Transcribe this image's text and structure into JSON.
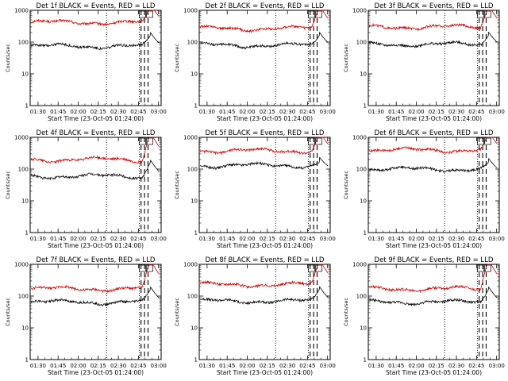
{
  "figure": {
    "colors": {
      "events": "#000000",
      "lld": "#d40000",
      "axis": "#000000"
    }
  },
  "chart_data": [
    {
      "type": "line",
      "title": "Det 1f BLACK = Events, RED = LLD",
      "xlabel": "Start Time (23-Oct-05 01:24:00)",
      "ylabel": "Counts/sec",
      "y_scale": "log",
      "ylim": [
        1,
        1000
      ],
      "x_ticks": [
        "01:30",
        "01:45",
        "02:00",
        "02:15",
        "02:30",
        "02:45",
        "03:00"
      ],
      "y_ticks": [
        "1",
        "10",
        "100",
        "1000"
      ],
      "series": [
        {
          "key": "lld",
          "base": 420,
          "rise": 1300,
          "color": "#d40000"
        },
        {
          "key": "events",
          "base": 75,
          "rise": 160,
          "color": "#000000"
        }
      ],
      "dashed_x": [
        2.54,
        2.62,
        2.7
      ],
      "dotted_x": [
        1.75,
        2.5
      ]
    },
    {
      "type": "line",
      "title": "Det 2f BLACK = Events, RED = LLD",
      "xlabel": "Start Time (23-Oct-05 01:24:00)",
      "ylabel": "Counts/sec",
      "y_scale": "log",
      "ylim": [
        1,
        1000
      ],
      "x_ticks": [
        "01:30",
        "01:45",
        "02:00",
        "02:15",
        "02:30",
        "02:45",
        "03:00"
      ],
      "y_ticks": [
        "1",
        "10",
        "100",
        "1000"
      ],
      "series": [
        {
          "key": "lld",
          "base": 270,
          "rise": 1300,
          "color": "#d40000"
        },
        {
          "key": "events",
          "base": 80,
          "rise": 160,
          "color": "#000000"
        }
      ],
      "dashed_x": [
        2.54,
        2.62,
        2.7
      ],
      "dotted_x": [
        1.75,
        2.5
      ]
    },
    {
      "type": "line",
      "title": "Det 3f BLACK = Events, RED = LLD",
      "xlabel": "Start Time (23-Oct-05 01:24:00)",
      "ylabel": "Counts/sec",
      "y_scale": "log",
      "ylim": [
        1,
        1000
      ],
      "x_ticks": [
        "01:30",
        "01:45",
        "02:00",
        "02:15",
        "02:30",
        "02:45",
        "03:00"
      ],
      "y_ticks": [
        "1",
        "10",
        "100",
        "1000"
      ],
      "series": [
        {
          "key": "lld",
          "base": 300,
          "rise": 1300,
          "color": "#d40000"
        },
        {
          "key": "events",
          "base": 85,
          "rise": 160,
          "color": "#000000"
        }
      ],
      "dashed_x": [
        2.54,
        2.62,
        2.7
      ],
      "dotted_x": [
        1.75,
        2.5
      ]
    },
    {
      "type": "line",
      "title": "Det 4f BLACK = Events, RED = LLD",
      "xlabel": "Start Time (23-Oct-05 01:24:00)",
      "ylabel": "Counts/sec",
      "y_scale": "log",
      "ylim": [
        1,
        1000
      ],
      "x_ticks": [
        "01:30",
        "01:45",
        "02:00",
        "02:15",
        "02:30",
        "02:45",
        "03:00"
      ],
      "y_ticks": [
        "1",
        "10",
        "100",
        "1000"
      ],
      "series": [
        {
          "key": "lld",
          "base": 200,
          "rise": 1300,
          "color": "#d40000"
        },
        {
          "key": "events",
          "base": 60,
          "rise": 160,
          "color": "#000000"
        }
      ],
      "dashed_x": [
        2.54,
        2.62,
        2.7
      ],
      "dotted_x": [
        1.75,
        2.5
      ]
    },
    {
      "type": "line",
      "title": "Det 5f BLACK = Events, RED = LLD",
      "xlabel": "Start Time (23-Oct-05 01:24:00)",
      "ylabel": "Counts/sec",
      "y_scale": "log",
      "ylim": [
        1,
        1000
      ],
      "x_ticks": [
        "01:30",
        "01:45",
        "02:00",
        "02:15",
        "02:30",
        "02:45",
        "03:00"
      ],
      "y_ticks": [
        "1",
        "10",
        "100",
        "1000"
      ],
      "series": [
        {
          "key": "lld",
          "base": 380,
          "rise": 1300,
          "color": "#d40000"
        },
        {
          "key": "events",
          "base": 130,
          "rise": 160,
          "color": "#000000"
        }
      ],
      "dashed_x": [
        2.54,
        2.62,
        2.7
      ],
      "dotted_x": [
        1.75,
        2.5
      ]
    },
    {
      "type": "line",
      "title": "Det 6f BLACK = Events, RED = LLD",
      "xlabel": "Start Time (23-Oct-05 01:24:00)",
      "ylabel": "Counts/sec",
      "y_scale": "log",
      "ylim": [
        1,
        1000
      ],
      "x_ticks": [
        "01:30",
        "01:45",
        "02:00",
        "02:15",
        "02:30",
        "02:45",
        "03:00"
      ],
      "y_ticks": [
        "1",
        "10",
        "100",
        "1000"
      ],
      "series": [
        {
          "key": "lld",
          "base": 400,
          "rise": 1300,
          "color": "#d40000"
        },
        {
          "key": "events",
          "base": 100,
          "rise": 160,
          "color": "#000000"
        }
      ],
      "dashed_x": [
        2.54,
        2.62,
        2.7
      ],
      "dotted_x": [
        1.75,
        2.5
      ]
    },
    {
      "type": "line",
      "title": "Det 7f BLACK = Events, RED = LLD",
      "xlabel": "Start Time (23-Oct-05 01:24:00)",
      "ylabel": "Counts/sec",
      "y_scale": "log",
      "ylim": [
        1,
        1000
      ],
      "x_ticks": [
        "01:30",
        "01:45",
        "02:00",
        "02:15",
        "02:30",
        "02:45",
        "03:00"
      ],
      "y_ticks": [
        "1",
        "10",
        "100",
        "1000"
      ],
      "series": [
        {
          "key": "lld",
          "base": 170,
          "rise": 1300,
          "color": "#d40000"
        },
        {
          "key": "events",
          "base": 65,
          "rise": 160,
          "color": "#000000"
        }
      ],
      "dashed_x": [
        2.54,
        2.62,
        2.7
      ],
      "dotted_x": [
        1.75,
        2.5
      ]
    },
    {
      "type": "line",
      "title": "Det 8f BLACK = Events, RED = LLD",
      "xlabel": "Start Time (23-Oct-05 01:24:00)",
      "ylabel": "Counts/sec",
      "y_scale": "log",
      "ylim": [
        1,
        1000
      ],
      "x_ticks": [
        "01:30",
        "01:45",
        "02:00",
        "02:15",
        "02:30",
        "02:45",
        "03:00"
      ],
      "y_ticks": [
        "1",
        "10",
        "100",
        "1000"
      ],
      "series": [
        {
          "key": "lld",
          "base": 230,
          "rise": 1300,
          "color": "#d40000"
        },
        {
          "key": "events",
          "base": 70,
          "rise": 160,
          "color": "#000000"
        }
      ],
      "dashed_x": [
        2.54,
        2.62,
        2.7
      ],
      "dotted_x": [
        1.75,
        2.5
      ]
    },
    {
      "type": "line",
      "title": "Det 9f BLACK = Events, RED = LLD",
      "xlabel": "Start Time (23-Oct-05 01:24:00)",
      "ylabel": "Counts/sec",
      "y_scale": "log",
      "ylim": [
        1,
        1000
      ],
      "x_ticks": [
        "01:30",
        "01:45",
        "02:00",
        "02:15",
        "02:30",
        "02:45",
        "03:00"
      ],
      "y_ticks": [
        "1",
        "10",
        "100",
        "1000"
      ],
      "series": [
        {
          "key": "lld",
          "base": 170,
          "rise": 1300,
          "color": "#d40000"
        },
        {
          "key": "events",
          "base": 65,
          "rise": 160,
          "color": "#000000"
        }
      ],
      "dashed_x": [
        2.54,
        2.62,
        2.7
      ],
      "dotted_x": [
        1.75,
        2.5
      ]
    }
  ]
}
